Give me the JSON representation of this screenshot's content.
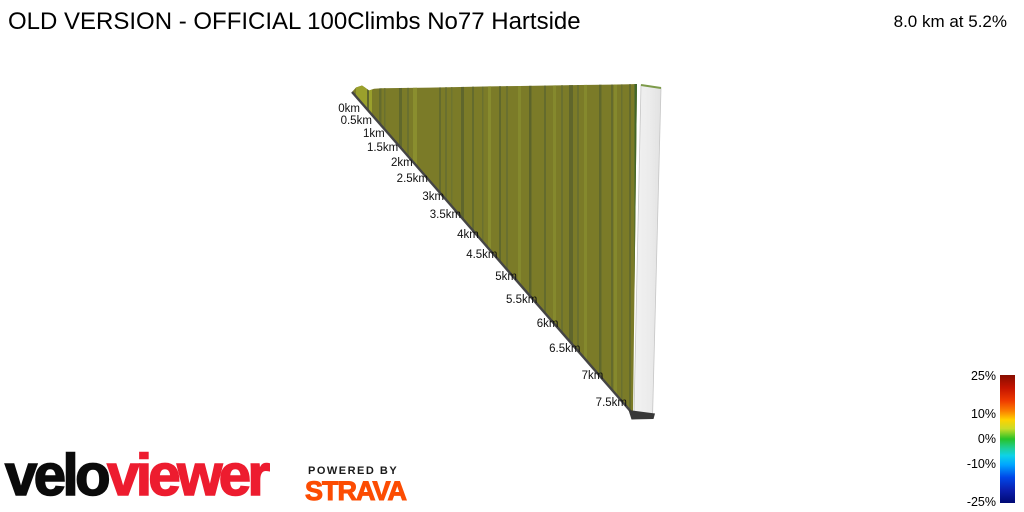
{
  "title": "OLD VERSION - OFFICIAL 100Climbs No77 Hartside",
  "summary": "8.0 km at 5.2%",
  "chart_data": {
    "type": "area",
    "subtype": "3d-elevation-ribbon",
    "title": "OLD VERSION - OFFICIAL 100Climbs No77 Hartside",
    "summary_label": "8.0 km at 5.2%",
    "total_distance_km": 8.0,
    "average_gradient_percent": 5.2,
    "x_tick_interval_km": 0.5,
    "x_tick_labels": [
      "0km",
      "0.5km",
      "1km",
      "1.5km",
      "2km",
      "2.5km",
      "3km",
      "3.5km",
      "4km",
      "4.5km",
      "5km",
      "5.5km",
      "6km",
      "6.5km",
      "7km",
      "7.5km"
    ],
    "legend": {
      "position": "bottom-right",
      "tick_labels": [
        "25%",
        "10%",
        "0%",
        "-10%",
        "-25%"
      ],
      "tick_values_percent": [
        25,
        10,
        0,
        -10,
        -25
      ],
      "range_percent": [
        -25,
        25
      ],
      "colormap": "jet-like: dark red at +25%, orange/yellow near +10%, green at 0%, cyan at -10%, dark navy at -25%"
    },
    "ribbon": {
      "dominant_surface_color": "#7b7b28",
      "side_face_color": "#ededed",
      "edge_line_color": "#454545"
    }
  },
  "footer": {
    "brand_black": "velo",
    "brand_red": "viewer",
    "powered_by_label": "POWERED BY",
    "strava_label": "STRAVA",
    "strava_color": "#fc4c02",
    "brand_red_color": "#ed1c2f"
  }
}
